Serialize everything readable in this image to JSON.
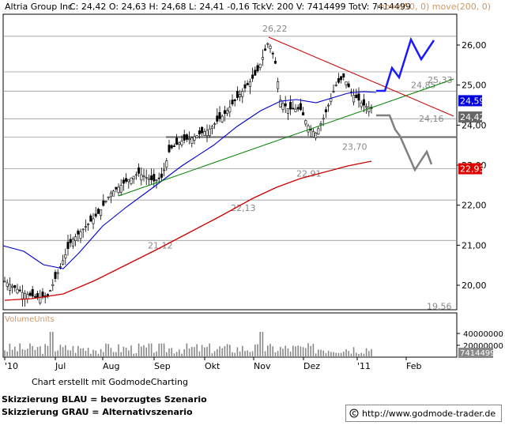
{
  "header": {
    "title": "Altria Group Inc",
    "quote": "C: 24,42  O: 24,63  H: 24,68  L: 24,41  -0,16  TckV: 200  V: 7414499  TotV: 7414499",
    "ma_legend": "move(50, 0)  move(200, 0)"
  },
  "chart_data": [
    {
      "type": "candlestick",
      "title": "Altria Group Inc",
      "x_ticks": [
        "'10",
        "Jul",
        "Aug",
        "Sep",
        "Okt",
        "Nov",
        "Dez",
        "'11",
        "Feb"
      ],
      "y_ticks": [
        "26,00",
        "25,00",
        "24,00",
        "23,00",
        "22,00",
        "21,00",
        "20,00"
      ],
      "ylim": [
        19.4,
        26.6
      ],
      "price_markers": [
        {
          "label": "24,59",
          "value": 24.59,
          "color": "#0000dd"
        },
        {
          "label": "24,42",
          "value": 24.42,
          "color": "#666666"
        },
        {
          "label": "22,93",
          "value": 22.93,
          "color": "#dd0000"
        }
      ],
      "annotations": [
        {
          "label": "26,22",
          "value": 26.22
        },
        {
          "label": "25,33",
          "value": 25.33
        },
        {
          "label": "24,85",
          "value": 24.85
        },
        {
          "label": "24,16",
          "value": 24.16
        },
        {
          "label": "23,70",
          "value": 23.7
        },
        {
          "label": "22,91",
          "value": 22.91
        },
        {
          "label": "22,13",
          "value": 22.13
        },
        {
          "label": "21,12",
          "value": 21.12
        },
        {
          "label": "19,56",
          "value": 19.56
        }
      ],
      "horizontal_levels": [
        26.22,
        25.33,
        24.85,
        24.16,
        23.7,
        22.91,
        22.13,
        21.12
      ],
      "series": [
        {
          "name": "move(50, 0)",
          "color": "#0000cc"
        },
        {
          "name": "move(200, 0)",
          "color": "#cc0000"
        }
      ],
      "scenarios": [
        {
          "name": "Skizzierung BLAU = bevorzugtes Szenario",
          "color": "#1a1aff"
        },
        {
          "name": "Skizzierung GRAU = Alternativszenario",
          "color": "#808080"
        }
      ]
    },
    {
      "type": "bar",
      "title": "VolumeUnits",
      "y_ticks": [
        "40000000",
        "20000000"
      ],
      "last_value_label": "7414499"
    }
  ],
  "footer": {
    "credit": "Chart erstellt mit GodmodeCharting",
    "legend_blue": "Skizzierung BLAU = bevorzugtes Szenario",
    "legend_gray": "Skizzierung GRAU = Alternativszenario",
    "url": "http://www.godmode-trader.de"
  }
}
